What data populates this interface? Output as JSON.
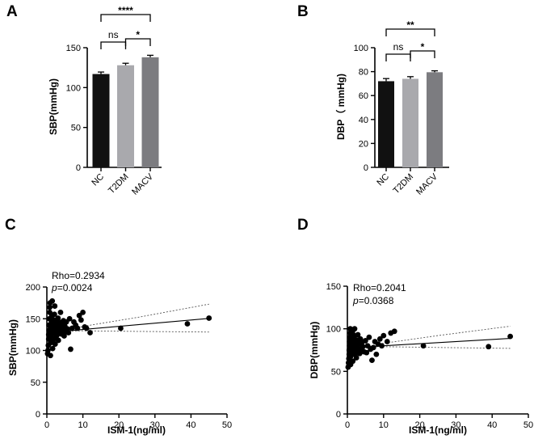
{
  "chart_data": [
    {
      "panel": "A",
      "type": "bar",
      "title": "",
      "xlabel": "",
      "ylabel": "SBP(mmHg)",
      "ylim": [
        0,
        150
      ],
      "yticks": [
        0,
        50,
        100,
        150
      ],
      "categories": [
        "NC",
        "T2DM",
        "MACV"
      ],
      "values": [
        117,
        128,
        138
      ],
      "errors": [
        2.5,
        2.5,
        2.5
      ],
      "colors": [
        "#111111",
        "#a9a9ad",
        "#7c7c80"
      ],
      "comparisons": [
        {
          "from": 0,
          "to": 1,
          "label": "ns"
        },
        {
          "from": 1,
          "to": 2,
          "label": "*"
        },
        {
          "from": 0,
          "to": 2,
          "label": "****"
        }
      ]
    },
    {
      "panel": "B",
      "type": "bar",
      "title": "",
      "xlabel": "",
      "ylabel": "DBP（ mmHg)",
      "ylim": [
        0,
        100
      ],
      "yticks": [
        0,
        20,
        40,
        60,
        80,
        100
      ],
      "categories": [
        "NC",
        "T2DM",
        "MACV"
      ],
      "values": [
        72,
        74,
        79.5
      ],
      "errors": [
        2.2,
        1.8,
        1.2
      ],
      "colors": [
        "#111111",
        "#a9a9ad",
        "#7c7c80"
      ],
      "comparisons": [
        {
          "from": 0,
          "to": 1,
          "label": "ns"
        },
        {
          "from": 1,
          "to": 2,
          "label": "*"
        },
        {
          "from": 0,
          "to": 2,
          "label": "**"
        }
      ]
    },
    {
      "panel": "C",
      "type": "scatter",
      "title": "",
      "xlabel": "ISM-1(ng/ml)",
      "ylabel": "SBP(mmHg)",
      "xlim": [
        0,
        50
      ],
      "ylim": [
        0,
        200
      ],
      "xticks": [
        0,
        10,
        20,
        30,
        40,
        50
      ],
      "yticks": [
        0,
        50,
        100,
        150,
        200
      ],
      "rho_text": "Rho=0.2934",
      "p_prefix": "p",
      "p_value": "=0.0024",
      "fit": {
        "slope": 0.5,
        "intercept": 128
      },
      "ci_upper": [
        [
          0,
          120
        ],
        [
          2,
          127
        ],
        [
          10,
          138
        ],
        [
          25,
          152
        ],
        [
          45,
          173
        ]
      ],
      "ci_lower": [
        [
          0,
          136
        ],
        [
          2,
          130
        ],
        [
          10,
          131
        ],
        [
          25,
          130
        ],
        [
          45,
          129
        ]
      ],
      "points": [
        [
          0.2,
          95
        ],
        [
          0.3,
          100
        ],
        [
          0.4,
          108
        ],
        [
          0.5,
          118
        ],
        [
          0.5,
          125
        ],
        [
          0.6,
          132
        ],
        [
          0.6,
          140
        ],
        [
          0.7,
          150
        ],
        [
          0.8,
          160
        ],
        [
          0.8,
          168
        ],
        [
          0.9,
          175
        ],
        [
          1.0,
          92
        ],
        [
          1.0,
          112
        ],
        [
          1.1,
          122
        ],
        [
          1.2,
          130
        ],
        [
          1.2,
          137
        ],
        [
          1.3,
          145
        ],
        [
          1.4,
          155
        ],
        [
          1.5,
          178
        ],
        [
          1.6,
          103
        ],
        [
          1.7,
          115
        ],
        [
          1.8,
          127
        ],
        [
          1.9,
          135
        ],
        [
          2.0,
          142
        ],
        [
          2.0,
          148
        ],
        [
          2.1,
          157
        ],
        [
          2.2,
          170
        ],
        [
          2.3,
          110
        ],
        [
          2.4,
          120
        ],
        [
          2.5,
          128
        ],
        [
          2.6,
          138
        ],
        [
          2.7,
          146
        ],
        [
          2.8,
          124
        ],
        [
          2.9,
          133
        ],
        [
          3.0,
          140
        ],
        [
          3.1,
          151
        ],
        [
          3.2,
          116
        ],
        [
          3.4,
          129
        ],
        [
          3.5,
          136
        ],
        [
          3.7,
          144
        ],
        [
          3.8,
          160
        ],
        [
          4.0,
          126
        ],
        [
          4.2,
          133
        ],
        [
          4.4,
          141
        ],
        [
          4.6,
          147
        ],
        [
          4.8,
          123
        ],
        [
          5.0,
          138
        ],
        [
          5.2,
          130
        ],
        [
          5.4,
          145
        ],
        [
          5.7,
          134
        ],
        [
          6.0,
          128
        ],
        [
          6.3,
          150
        ],
        [
          6.6,
          102
        ],
        [
          7.0,
          135
        ],
        [
          7.5,
          145
        ],
        [
          8.0,
          140
        ],
        [
          8.5,
          135
        ],
        [
          9.0,
          155
        ],
        [
          9.5,
          148
        ],
        [
          10.0,
          160
        ],
        [
          10.5,
          137
        ],
        [
          11.0,
          135
        ],
        [
          12.0,
          128
        ],
        [
          20.5,
          135
        ],
        [
          39.0,
          142
        ],
        [
          45.0,
          151
        ]
      ]
    },
    {
      "panel": "D",
      "type": "scatter",
      "title": "",
      "xlabel": "ISM-1(ng/ml)",
      "ylabel": "DBP(mmHg)",
      "xlim": [
        0,
        50
      ],
      "ylim": [
        0,
        150
      ],
      "xticks": [
        0,
        10,
        20,
        30,
        40,
        50
      ],
      "yticks": [
        0,
        50,
        100,
        150
      ],
      "rho_text": "Rho=0.2041",
      "p_prefix": "p",
      "p_value": "=0.0368",
      "fit": {
        "slope": 0.25,
        "intercept": 77.5
      },
      "ci_upper": [
        [
          0,
          73
        ],
        [
          2,
          76
        ],
        [
          10,
          83
        ],
        [
          25,
          92
        ],
        [
          45,
          103
        ]
      ],
      "ci_lower": [
        [
          0,
          81
        ],
        [
          2,
          79
        ],
        [
          10,
          79
        ],
        [
          25,
          78
        ],
        [
          45,
          77
        ]
      ],
      "points": [
        [
          0.2,
          55
        ],
        [
          0.3,
          60
        ],
        [
          0.4,
          65
        ],
        [
          0.5,
          70
        ],
        [
          0.5,
          75
        ],
        [
          0.6,
          80
        ],
        [
          0.6,
          85
        ],
        [
          0.7,
          90
        ],
        [
          0.8,
          95
        ],
        [
          0.8,
          100
        ],
        [
          0.9,
          58
        ],
        [
          1.0,
          68
        ],
        [
          1.1,
          72
        ],
        [
          1.2,
          78
        ],
        [
          1.2,
          83
        ],
        [
          1.3,
          88
        ],
        [
          1.4,
          96
        ],
        [
          1.5,
          62
        ],
        [
          1.6,
          74
        ],
        [
          1.7,
          79
        ],
        [
          1.8,
          84
        ],
        [
          1.9,
          92
        ],
        [
          2.0,
          100
        ],
        [
          2.1,
          70
        ],
        [
          2.2,
          76
        ],
        [
          2.3,
          81
        ],
        [
          2.4,
          87
        ],
        [
          2.5,
          66
        ],
        [
          2.6,
          73
        ],
        [
          2.7,
          80
        ],
        [
          2.8,
          86
        ],
        [
          2.9,
          93
        ],
        [
          3.0,
          77
        ],
        [
          3.2,
          82
        ],
        [
          3.4,
          71
        ],
        [
          3.6,
          88
        ],
        [
          3.8,
          75
        ],
        [
          4.0,
          84
        ],
        [
          4.3,
          79
        ],
        [
          4.6,
          73
        ],
        [
          5.0,
          86
        ],
        [
          5.3,
          72
        ],
        [
          5.6,
          80
        ],
        [
          6.0,
          90
        ],
        [
          6.4,
          76
        ],
        [
          6.8,
          63
        ],
        [
          7.2,
          78
        ],
        [
          7.6,
          85
        ],
        [
          8.0,
          70
        ],
        [
          8.5,
          82
        ],
        [
          9.0,
          88
        ],
        [
          9.5,
          80
        ],
        [
          10.0,
          92
        ],
        [
          11.0,
          85
        ],
        [
          12.0,
          95
        ],
        [
          13.0,
          97
        ],
        [
          21.0,
          80
        ],
        [
          39.0,
          79
        ],
        [
          45.0,
          91
        ]
      ]
    }
  ]
}
